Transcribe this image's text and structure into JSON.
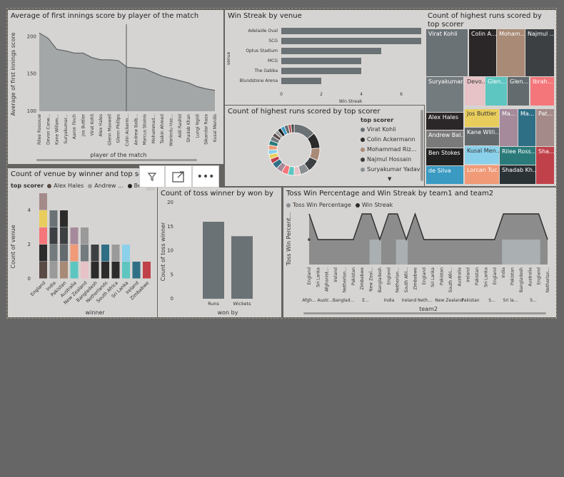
{
  "colors": {
    "panel_bg": "#d6d4d2",
    "area": "#a3a7a8",
    "bar": "#6b7276",
    "series_dark": "#2b2b2b",
    "series_grey": "#8a8f92"
  },
  "p1": {
    "title": "Average of first innings score by player of the match",
    "xlabel": "player of the match",
    "ylabel": "Average of first innings score",
    "yticks": [
      "200",
      "150",
      "100"
    ],
    "players": [
      "Rilee Rossouw",
      "Devon Conw...",
      "Kane Willam...",
      "Suryakumar...",
      "Aaron Finch",
      "Jos Buttler",
      "Virat Kohli",
      "Alex Hales",
      "Glenn Maxwell",
      "Glenn Phillips",
      "Colin Ackerm...",
      "Andrew Balb...",
      "Marcus Stoinis",
      "Mohammad...",
      "Taskin Ahmed",
      "Wanindu Has...",
      "Adil Rashid",
      "Shadab Khan",
      "Lungi Ngidi",
      "Sikandar Raza",
      "Kusal Mendis"
    ]
  },
  "p2": {
    "title": "Win Streak by venue",
    "ylabel": "venue",
    "xlabel": "Win Streak",
    "xticks": [
      "0",
      "2",
      "4",
      "6"
    ],
    "venues": [
      "Adelaide Oval",
      "SCG",
      "Optus Stadium",
      "MCG",
      "The Gabba",
      "Blundstone Arena"
    ]
  },
  "p3": {
    "title": "Count of highest runs scored by top scorer",
    "cells": [
      "Virat Kohli",
      "Colin A...",
      "Moham...",
      "Najmul ...",
      "Suryakumar...",
      "Devo...",
      "Glen...",
      "Glen...",
      "Ibrah...",
      "Alex Hales",
      "Jos Buttler",
      "Ma...",
      "Ma...",
      "Pat...",
      "Andrew Bal...",
      "Kane Willi...",
      "Ben Stokes",
      "Kusal Men...",
      "Rilee Ross...",
      "Sha...",
      "de Silva",
      "Lorcan Tuc...",
      "Shadab Kh..."
    ]
  },
  "p4": {
    "title": "Count of highest runs scored by top scorer",
    "legend_title": "top scorer",
    "legend": [
      "Virat Kohli",
      "Colin Ackermann",
      "Mohammad Riz...",
      "Najmul Hossain",
      "Suryakumar Yadav"
    ],
    "legend_colors": [
      "#6b7276",
      "#2b2b2b",
      "#a88a76",
      "#3d3d3d",
      "#8a8f92"
    ]
  },
  "p5": {
    "title": "Count of venue by winner and top scorer",
    "legend_title": "top scorer",
    "legend": [
      "Alex Hales",
      "Andrew ...",
      "Ben Stokes"
    ],
    "legend_colors": [
      "#5a4a46",
      "#9a9a9a",
      "#222222"
    ],
    "ylabel": "Count of venue",
    "xlabel": "winner",
    "yticks": [
      "4",
      "2",
      "0"
    ],
    "winners": [
      "England",
      "India",
      "Pakistan",
      "Australia",
      "New Zealand",
      "Bangladesh",
      "Netherlands",
      "South Africa",
      "Sri Lanka",
      "Ireland",
      "Zimbabwe"
    ]
  },
  "toolbar": {
    "filter_icon": "filter-icon",
    "focus_icon": "focus-mode-icon",
    "more_icon": "more-options-icon",
    "more_label": "•••"
  },
  "p6": {
    "title": "Count of toss winner by won by",
    "ylabel": "Count of toss winner",
    "xlabel": "won by",
    "yticks": [
      "20",
      "15",
      "10",
      "5",
      "0"
    ],
    "categories": [
      "Runs",
      "Wickets"
    ]
  },
  "p7": {
    "title": "Toss Win Percentage and Win Streak by team1 and team2",
    "legend": [
      "Toss Win Percentage",
      "Win Streak"
    ],
    "legend_colors": [
      "#8a8f92",
      "#2b2b2b"
    ],
    "ylabel": "Toss Win Percent...",
    "xlabel": "team2",
    "team2_labels": [
      "England",
      "Sri Lanka",
      "Afghanist...",
      "Ireland",
      "Netherlan...",
      "Pakistan",
      "Zimbabwe",
      "New Zeal...",
      "Bangladesh",
      "England",
      "Netherlan...",
      "South Afri...",
      "Zimbabwe",
      "England",
      "Sri Lanka",
      "Pakistan",
      "South Afri...",
      "Australia",
      "Ireland",
      "Pakistan",
      "Sri Lanka",
      "England",
      "India",
      "Pakistan",
      "Bangladesh",
      "Australia",
      "England",
      "Netherlan..."
    ],
    "team1_labels": [
      "Afgh...",
      "Austr...",
      "Banglad...",
      "E...",
      "India",
      "Ireland",
      "Neth...",
      "New Zealand",
      "Pakistan",
      "S...",
      "Sri la...",
      "S..."
    ]
  }
}
